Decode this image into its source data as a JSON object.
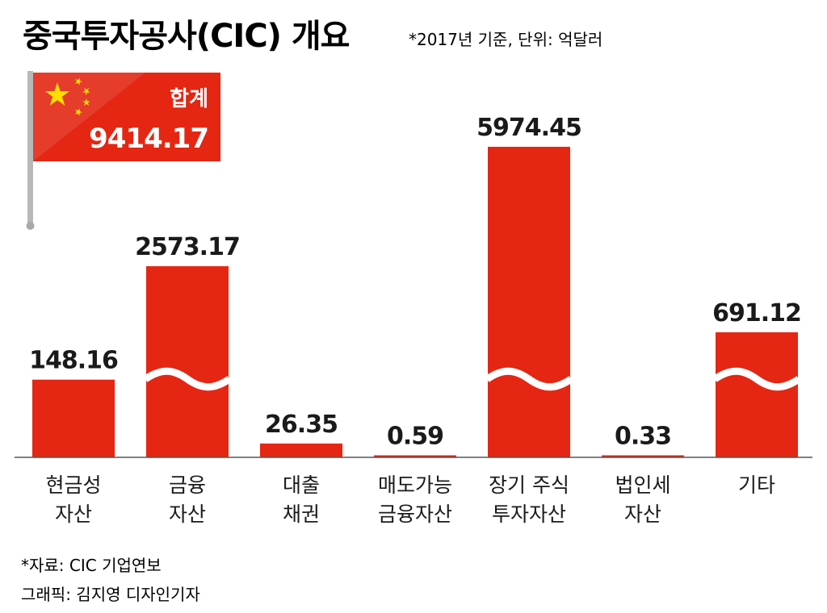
{
  "colors": {
    "bar": "#e42613",
    "text": "#1a1a1a",
    "axis": "#555555",
    "flag_star": "#ffde00"
  },
  "chart_data": {
    "type": "bar",
    "title": "중국투자공사(CIC) 개요",
    "subtitle": "*2017년 기준, 단위: 억달러",
    "categories": [
      [
        "현금성",
        "자산"
      ],
      [
        "금융",
        "자산"
      ],
      [
        "대출",
        "채권"
      ],
      [
        "매도가능",
        "금융자산"
      ],
      [
        "장기 주식",
        "투자자산"
      ],
      [
        "법인세",
        "자산"
      ],
      [
        "기타"
      ]
    ],
    "values": [
      148.16,
      2573.17,
      26.35,
      0.59,
      5974.45,
      0.33,
      691.12
    ],
    "value_labels": [
      "148.16",
      "2573.17",
      "26.35",
      "0.59",
      "5974.45",
      "0.33",
      "691.12"
    ],
    "broken_axis_bars": [
      1,
      4,
      6
    ],
    "total": {
      "label": "합계",
      "value": "9414.17"
    },
    "source": "*자료: CIC 기업연보",
    "credit": "그래픽: 김지영 디자인기자",
    "legend": "none",
    "grid": false
  }
}
